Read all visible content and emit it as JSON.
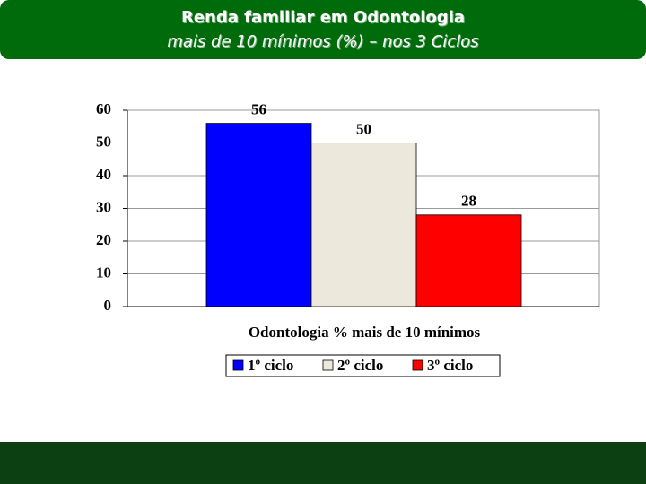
{
  "chart_data": {
    "type": "bar",
    "title": "Renda familiar em Odontologia",
    "subtitle": "mais de 10 mínimos (%) – nos 3 Ciclos",
    "x_label": "Odontologia % mais de 10 mínimos",
    "series": [
      {
        "name": "1º ciclo",
        "color": "#0000ff",
        "values": [
          56
        ]
      },
      {
        "name": "2º ciclo",
        "color": "#ece9dc",
        "values": [
          50
        ]
      },
      {
        "name": "3º ciclo",
        "color": "#ff0000",
        "values": [
          28
        ]
      }
    ],
    "ylim": [
      0,
      60
    ],
    "yticks": [
      0,
      10,
      20,
      30,
      40,
      50,
      60
    ],
    "grid": true,
    "legend": "bottom"
  }
}
